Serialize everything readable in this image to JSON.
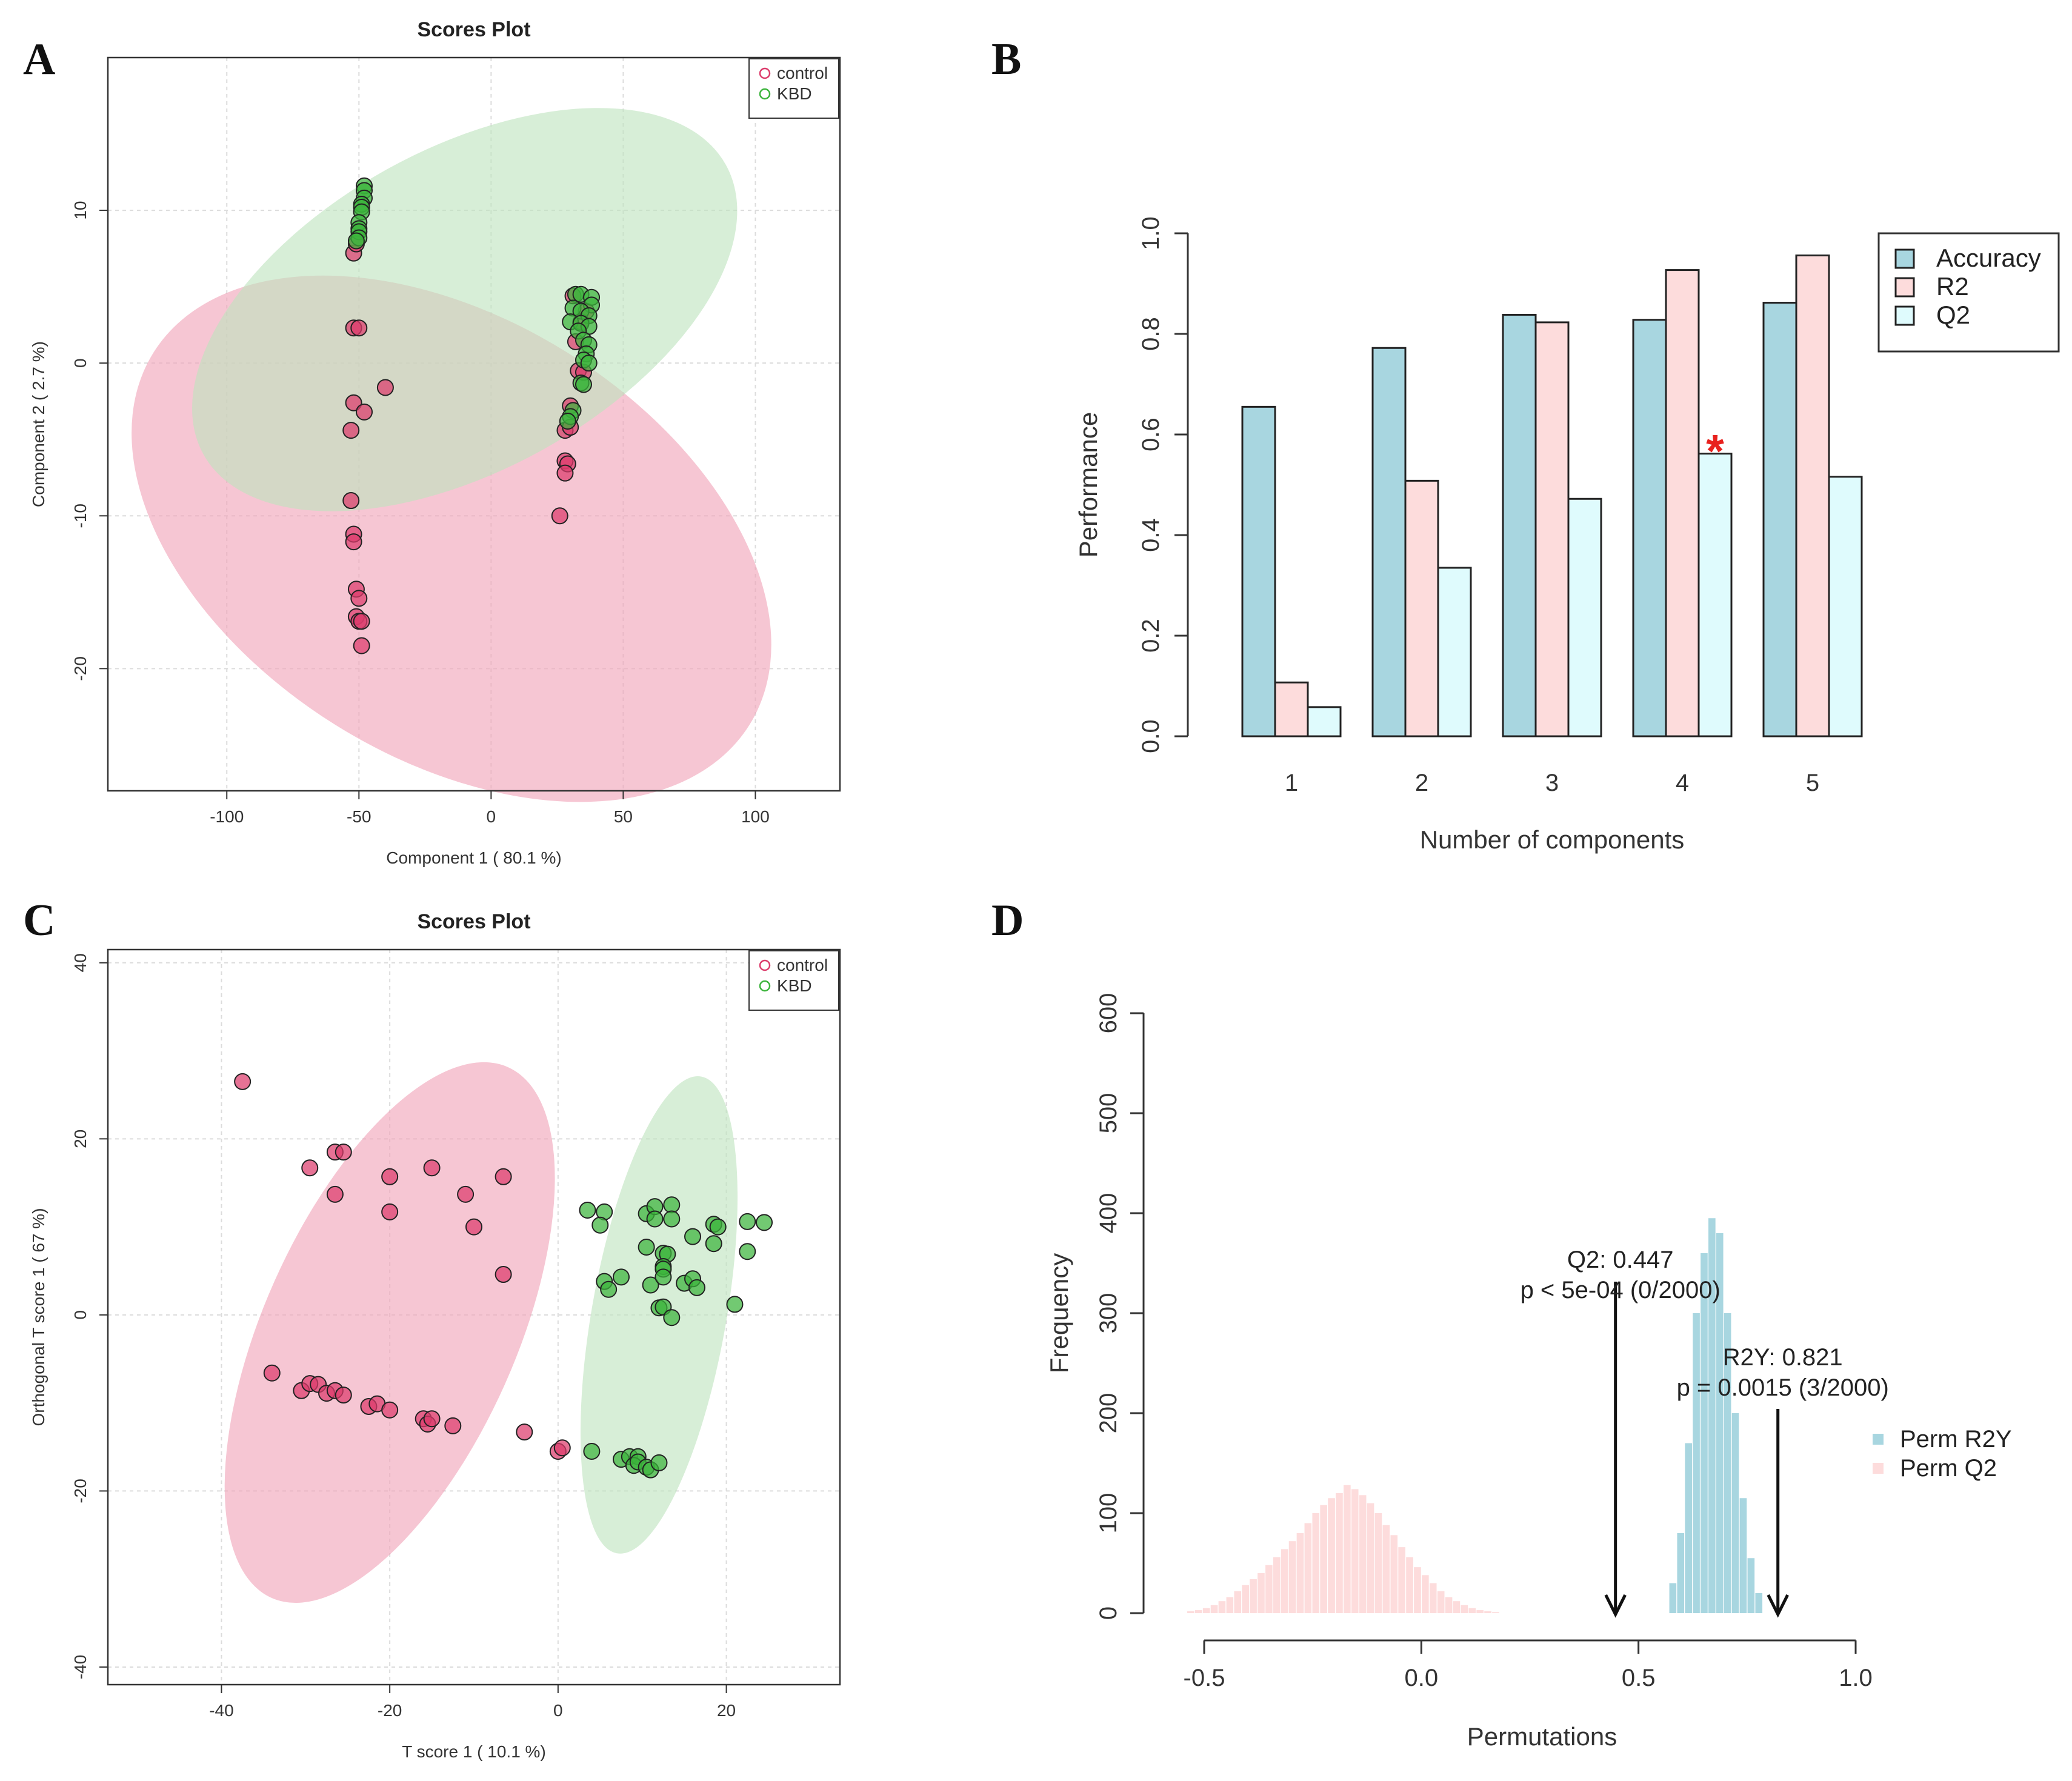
{
  "chart_data": [
    {
      "panel": "A",
      "type": "scatter",
      "title": "Scores Plot",
      "xlabel": "Component 1 ( 80.1 %)",
      "ylabel": "Component 2 ( 2.7 %)",
      "xlim": [
        -145,
        132
      ],
      "ylim": [
        -28,
        20
      ],
      "xticks": [
        -100,
        -50,
        0,
        50,
        100
      ],
      "yticks": [
        -20,
        -10,
        0,
        10
      ],
      "grid": true,
      "legend": {
        "position": "top-right",
        "entries": [
          "control",
          "KBD"
        ]
      },
      "colors": {
        "control": "#dc3c6c",
        "KBD": "#3cb43c",
        "control_fill": "#f0a3b8",
        "KBD_fill": "#bfe3bf"
      },
      "ellipses": [
        {
          "group": "control",
          "cx": -15,
          "cy": -11.5,
          "rx": 83,
          "ry": 23,
          "angle_deg": -58
        },
        {
          "group": "KBD",
          "cx": -10,
          "cy": 3.5,
          "rx": 113,
          "ry": 10.5,
          "angle_deg": -29
        }
      ],
      "series": [
        {
          "name": "control",
          "points": [
            [
              -52,
              7.2
            ],
            [
              -51,
              7.8
            ],
            [
              -52,
              2.3
            ],
            [
              -50,
              2.3
            ],
            [
              -40,
              -1.6
            ],
            [
              -52,
              -2.6
            ],
            [
              -48,
              -3.2
            ],
            [
              -53,
              -4.4
            ],
            [
              -53,
              -9
            ],
            [
              -52,
              -11.2
            ],
            [
              -52,
              -11.7
            ],
            [
              -51,
              -14.8
            ],
            [
              -50,
              -15.4
            ],
            [
              -51,
              -16.6
            ],
            [
              -50,
              -16.9
            ],
            [
              -49,
              -18.5
            ],
            [
              -49,
              -16.9
            ],
            [
              28,
              -4.4
            ],
            [
              30,
              -4.2
            ],
            [
              28,
              -6.4
            ],
            [
              29,
              -6.6
            ],
            [
              28,
              -7.2
            ],
            [
              26,
              -10
            ],
            [
              32,
              1.4
            ],
            [
              33,
              -0.5
            ],
            [
              35,
              -0.6
            ],
            [
              31,
              4.4
            ],
            [
              36,
              3.4
            ],
            [
              34,
              2.7
            ],
            [
              30,
              -2.8
            ]
          ]
        },
        {
          "name": "KBD",
          "points": [
            [
              -48,
              11.6
            ],
            [
              -48,
              11.3
            ],
            [
              -48,
              10.8
            ],
            [
              -49,
              10.4
            ],
            [
              -49,
              10.2
            ],
            [
              -49,
              9.9
            ],
            [
              -50,
              9.2
            ],
            [
              -50,
              8.8
            ],
            [
              -50,
              8.6
            ],
            [
              -50,
              8.2
            ],
            [
              -51,
              8.0
            ],
            [
              32,
              4.5
            ],
            [
              34,
              4.5
            ],
            [
              38,
              4.3
            ],
            [
              38,
              3.8
            ],
            [
              31,
              3.6
            ],
            [
              34,
              3.4
            ],
            [
              37,
              3.1
            ],
            [
              30,
              2.7
            ],
            [
              34,
              2.6
            ],
            [
              37,
              2.4
            ],
            [
              33,
              2.1
            ],
            [
              35,
              1.5
            ],
            [
              37,
              1.2
            ],
            [
              36,
              0.6
            ],
            [
              35,
              0.2
            ],
            [
              37,
              0.0
            ],
            [
              34,
              -1.3
            ],
            [
              35,
              -1.4
            ],
            [
              31,
              -3.1
            ],
            [
              30,
              -3.5
            ],
            [
              29,
              -3.8
            ]
          ]
        }
      ]
    },
    {
      "panel": "B",
      "type": "bar",
      "title": "",
      "xlabel": "Number of components",
      "ylabel": "Performance",
      "ylim": [
        0,
        1
      ],
      "yticks": [
        "0.0",
        "0.2",
        "0.4",
        "0.6",
        "0.8",
        "1.0"
      ],
      "categories": [
        "1",
        "2",
        "3",
        "4",
        "5"
      ],
      "series": [
        {
          "name": "Accuracy",
          "color": "#a8d6e0",
          "values": [
            0.655,
            0.772,
            0.838,
            0.828,
            0.862
          ]
        },
        {
          "name": "R2",
          "color": "#fddcdc",
          "values": [
            0.107,
            0.508,
            0.823,
            0.927,
            0.956
          ]
        },
        {
          "name": "Q2",
          "color": "#dffbfd",
          "values": [
            0.058,
            0.335,
            0.472,
            0.562,
            0.516
          ]
        }
      ],
      "legend": {
        "position": "top-right",
        "entries": [
          "Accuracy",
          "R2",
          "Q2"
        ]
      },
      "annotation": {
        "text": "*",
        "category": "4",
        "series": "Q2",
        "color": "#e8211e"
      }
    },
    {
      "panel": "C",
      "type": "scatter",
      "title": "Scores Plot",
      "xlabel": "T score  1  ( 10.1 %)",
      "ylabel": "Orthogonal T score  1  ( 67 %)",
      "xlim": [
        -53.5,
        33.5
      ],
      "ylim": [
        -42,
        41.5
      ],
      "xticks": [
        -40,
        -20,
        0,
        20
      ],
      "yticks": [
        -40,
        -20,
        0,
        20,
        40
      ],
      "grid": true,
      "legend": {
        "position": "top-right",
        "entries": [
          "control",
          "KBD"
        ]
      },
      "colors": {
        "control": "#dc3c6c",
        "KBD": "#3cb43c",
        "control_fill": "#f0a3b8",
        "KBD_fill": "#bfe3bf"
      },
      "ellipses": [
        {
          "group": "control",
          "cx": -20,
          "cy": -2,
          "rx": 15,
          "ry": 33,
          "angle_deg": 24
        },
        {
          "group": "KBD",
          "cx": 12,
          "cy": 0,
          "rx": 8,
          "ry": 27.5,
          "angle_deg": 10
        }
      ],
      "series": [
        {
          "name": "control",
          "points": [
            [
              -37.5,
              26.5
            ],
            [
              -29.5,
              16.7
            ],
            [
              -26.5,
              18.5
            ],
            [
              -25.5,
              18.5
            ],
            [
              -20,
              15.7
            ],
            [
              -15,
              16.7
            ],
            [
              -6.5,
              15.7
            ],
            [
              -26.5,
              13.7
            ],
            [
              -20,
              11.7
            ],
            [
              -11,
              13.7
            ],
            [
              -10,
              10
            ],
            [
              -6.5,
              4.6
            ],
            [
              -34,
              -6.6
            ],
            [
              -30.5,
              -8.6
            ],
            [
              -29.5,
              -7.8
            ],
            [
              -28.5,
              -7.9
            ],
            [
              -27.5,
              -8.9
            ],
            [
              -26.5,
              -8.6
            ],
            [
              -25.5,
              -9.1
            ],
            [
              -22.5,
              -10.4
            ],
            [
              -21.5,
              -10.1
            ],
            [
              -20,
              -10.8
            ],
            [
              -16,
              -11.8
            ],
            [
              -15.5,
              -12.4
            ],
            [
              -15,
              -11.8
            ],
            [
              -12.5,
              -12.6
            ],
            [
              -4,
              -13.3
            ],
            [
              0,
              -15.5
            ],
            [
              0.5,
              -15.1
            ]
          ]
        },
        {
          "name": "KBD",
          "points": [
            [
              3.5,
              11.9
            ],
            [
              5.5,
              11.7
            ],
            [
              5,
              10.2
            ],
            [
              10.5,
              11.5
            ],
            [
              11.5,
              12.3
            ],
            [
              13.5,
              12.5
            ],
            [
              11.5,
              10.9
            ],
            [
              13.5,
              10.9
            ],
            [
              16,
              8.9
            ],
            [
              18.5,
              10.3
            ],
            [
              19,
              10
            ],
            [
              22.5,
              10.6
            ],
            [
              24.5,
              10.5
            ],
            [
              10.5,
              7.7
            ],
            [
              12.5,
              7
            ],
            [
              13,
              6.9
            ],
            [
              12.5,
              5.5
            ],
            [
              12.5,
              5.2
            ],
            [
              18.5,
              8.1
            ],
            [
              22.5,
              7.2
            ],
            [
              7.5,
              4.3
            ],
            [
              5.5,
              3.8
            ],
            [
              6,
              2.9
            ],
            [
              11,
              3.4
            ],
            [
              12.5,
              4.3
            ],
            [
              15,
              3.6
            ],
            [
              16,
              4.1
            ],
            [
              16.5,
              3.1
            ],
            [
              21,
              1.2
            ],
            [
              12,
              0.8
            ],
            [
              12.5,
              0.9
            ],
            [
              13.5,
              -0.3
            ],
            [
              4,
              -15.5
            ],
            [
              7.5,
              -16.4
            ],
            [
              8.5,
              -16.1
            ],
            [
              9.5,
              -16.1
            ],
            [
              9,
              -17.1
            ],
            [
              9.5,
              -16.7
            ],
            [
              10.5,
              -17.3
            ],
            [
              11,
              -17.6
            ],
            [
              12,
              -16.8
            ]
          ]
        }
      ]
    },
    {
      "panel": "D",
      "type": "histogram",
      "title": "",
      "xlabel": "Permutations",
      "ylabel": "Frequency",
      "xlim": [
        -0.5,
        1.0
      ],
      "ylim": [
        0,
        600
      ],
      "xticks": [
        "-0.5",
        "0.0",
        "0.5",
        "1.0"
      ],
      "yticks": [
        "0",
        "100",
        "200",
        "300",
        "400",
        "500",
        "600"
      ],
      "bin_width": 0.018,
      "series": [
        {
          "name": "Perm R2Y",
          "color": "#a8d6e0",
          "x": [
            0.58,
            0.598,
            0.616,
            0.634,
            0.652,
            0.67,
            0.688,
            0.706,
            0.724,
            0.742,
            0.76,
            0.778
          ],
          "counts": [
            30,
            80,
            170,
            300,
            360,
            395,
            380,
            300,
            200,
            115,
            55,
            20
          ]
        },
        {
          "name": "Perm Q2",
          "color": "#fddcdc",
          "x": [
            -0.53,
            -0.512,
            -0.494,
            -0.476,
            -0.458,
            -0.44,
            -0.422,
            -0.404,
            -0.386,
            -0.368,
            -0.35,
            -0.332,
            -0.314,
            -0.296,
            -0.278,
            -0.26,
            -0.242,
            -0.224,
            -0.206,
            -0.188,
            -0.17,
            -0.152,
            -0.134,
            -0.116,
            -0.098,
            -0.08,
            -0.062,
            -0.044,
            -0.026,
            -0.008,
            0.01,
            0.028,
            0.046,
            0.064,
            0.082,
            0.1,
            0.118,
            0.136,
            0.154,
            0.172
          ],
          "counts": [
            2,
            3,
            5,
            8,
            12,
            16,
            22,
            28,
            34,
            40,
            48,
            56,
            64,
            72,
            80,
            90,
            100,
            108,
            115,
            120,
            128,
            124,
            118,
            110,
            100,
            88,
            78,
            66,
            56,
            46,
            38,
            30,
            22,
            16,
            12,
            8,
            5,
            3,
            2,
            1
          ]
        }
      ],
      "arrows": [
        {
          "x": 0.447,
          "label_line1": "Q2: 0.447",
          "label_line2": "p < 5e-04 (0/2000)"
        },
        {
          "x": 0.821,
          "label_line1": "R2Y: 0.821",
          "label_line2": "p = 0.0015 (3/2000)"
        }
      ],
      "legend": {
        "position": "right",
        "entries": [
          "Perm R2Y",
          "Perm Q2"
        ]
      }
    }
  ]
}
